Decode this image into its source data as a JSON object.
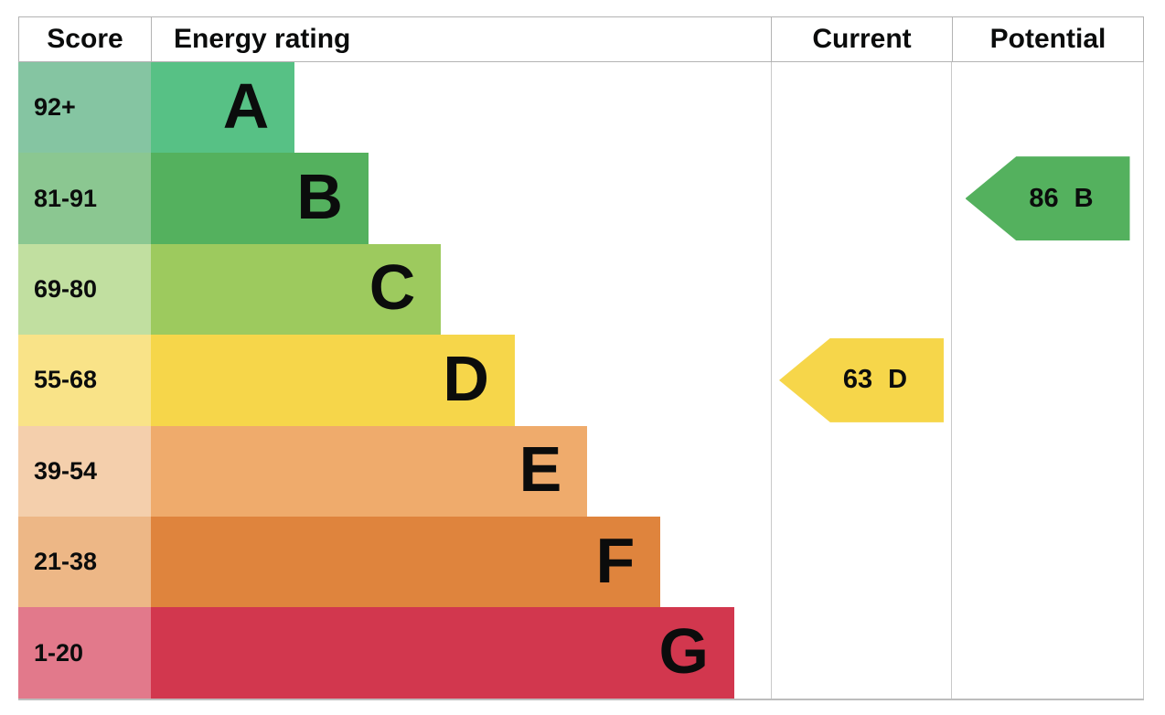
{
  "header": {
    "score": "Score",
    "energy_rating": "Energy rating",
    "current": "Current",
    "potential": "Potential"
  },
  "chart_data": {
    "type": "bar",
    "title": "Energy efficiency rating chart (EPC)",
    "legend_position": "none",
    "columns": [
      "Score",
      "Energy rating",
      "Current",
      "Potential"
    ],
    "bands": [
      {
        "letter": "A",
        "score_range": "92+",
        "bar_width_pct": "23.2%",
        "color": "#57c185",
        "tint": "#85c5a2"
      },
      {
        "letter": "B",
        "score_range": "81-91",
        "bar_width_pct": "35.1%",
        "color": "#54b15e",
        "tint": "#8bc791"
      },
      {
        "letter": "C",
        "score_range": "69-80",
        "bar_width_pct": "46.8%",
        "color": "#9dca5e",
        "tint": "#c1dfa0"
      },
      {
        "letter": "D",
        "score_range": "55-68",
        "bar_width_pct": "58.7%",
        "color": "#f6d64a",
        "tint": "#f9e388"
      },
      {
        "letter": "E",
        "score_range": "39-54",
        "bar_width_pct": "70.4%",
        "color": "#efab6c",
        "tint": "#f4cfac"
      },
      {
        "letter": "F",
        "score_range": "21-38",
        "bar_width_pct": "82.2%",
        "color": "#df843d",
        "tint": "#edb786"
      },
      {
        "letter": "G",
        "score_range": "1-20",
        "bar_width_pct": "94.1%",
        "color": "#d2374e",
        "tint": "#e2798b"
      }
    ],
    "current": {
      "value": "63",
      "band": "D",
      "color": "#f6d64a",
      "row": "55-68"
    },
    "potential": {
      "value": "86",
      "band": "B",
      "color": "#54b15e",
      "row": "81-91"
    }
  },
  "colors": {
    "header_border": "#b3b3b3",
    "grid_line": "#c9c9c9",
    "text": "#0b0c0c",
    "background": "#ffffff"
  }
}
